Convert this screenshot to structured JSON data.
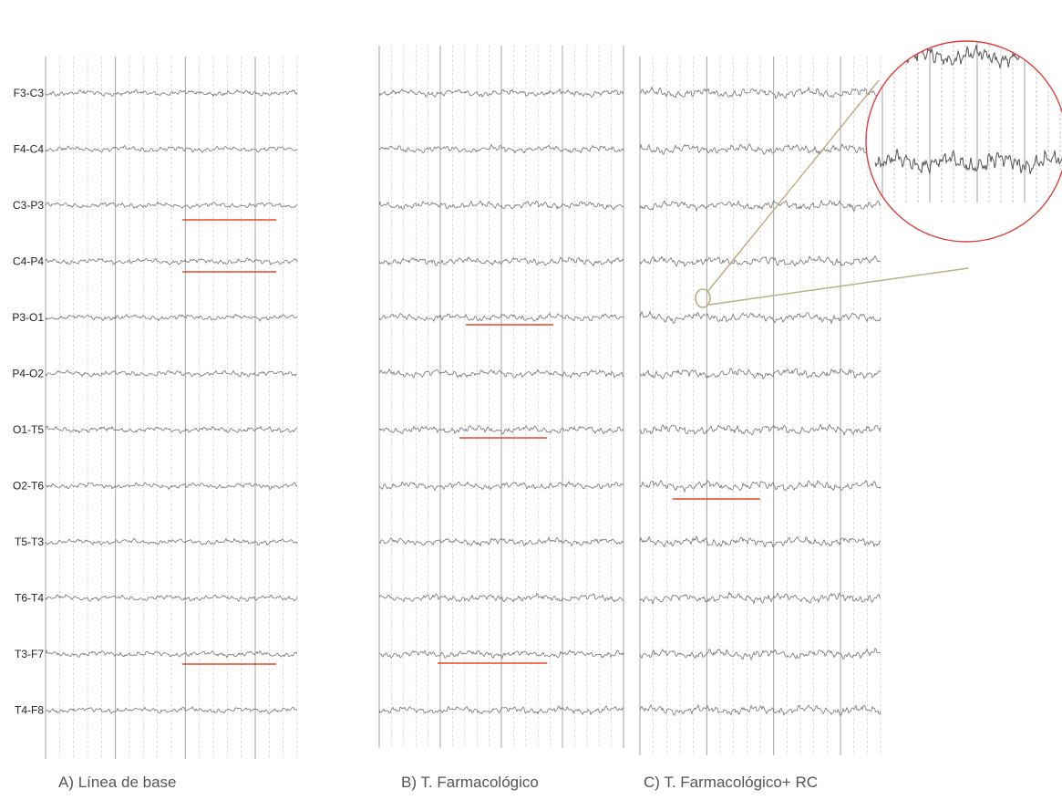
{
  "figure": {
    "channels": [
      "F3-C3",
      "F4-C4",
      "C3-P3",
      "C4-P4",
      "P3-O1",
      "P4-O2",
      "O1-T5",
      "O2-T6",
      "T5-T3",
      "T6-T4",
      "T3-F7",
      "T4-F8"
    ],
    "panels": [
      {
        "caption": "A) Línea de base",
        "marked_channels": [
          "C3-P3",
          "C4-P4",
          "T3-F7"
        ]
      },
      {
        "caption": "B) T.  Farmacológico",
        "marked_channels": [
          "P3-O1",
          "O1-T5",
          "T3-F7"
        ]
      },
      {
        "caption": "C) T. Farmacológico+ RC",
        "marked_channels": [
          "O2-T6"
        ],
        "has_zoom_inset": true
      }
    ],
    "colors": {
      "trace": "#6b6b6b",
      "grid": "#c8c8c8",
      "marker": "#e8462a",
      "zoom_circle": "#e23c3c",
      "zoom_lines": "#b9ad7f"
    }
  }
}
